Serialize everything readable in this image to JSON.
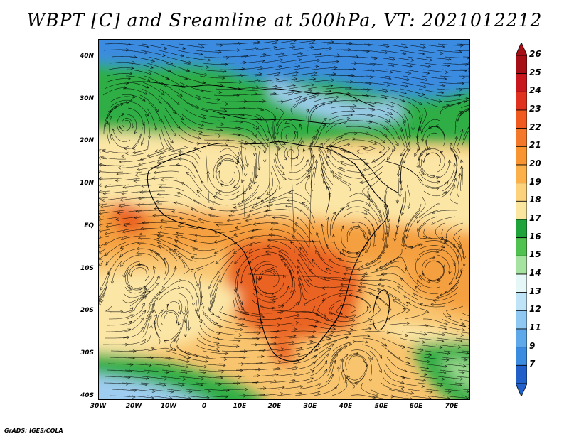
{
  "title": "WBPT [C] and Sreamline at 500hPa, VT: 2021012212",
  "credit": "GrADS: IGES/COLA",
  "lat_labels": [
    "40N",
    "30N",
    "20N",
    "10N",
    "EQ",
    "10S",
    "20S",
    "30S",
    "40S"
  ],
  "lon_labels": [
    "30W",
    "20W",
    "10W",
    "0",
    "10E",
    "20E",
    "30E",
    "40E",
    "50E",
    "60E",
    "70E"
  ],
  "colorbar": {
    "labels": [
      "26",
      "25",
      "24",
      "23",
      "22",
      "21",
      "20",
      "19",
      "18",
      "17",
      "16",
      "15",
      "14",
      "13",
      "12",
      "11",
      "9",
      "7"
    ],
    "colors": [
      "#a50f15",
      "#c8181e",
      "#e0301e",
      "#f05a1e",
      "#f4782a",
      "#f99530",
      "#fbb04a",
      "#fcd27c",
      "#fbe6a0",
      "#1fa33b",
      "#4fc24f",
      "#a6e2a0",
      "#e6f7f7",
      "#bfe3f7",
      "#8fc8f2",
      "#5fa9ea",
      "#3b8be0",
      "#2060c8"
    ]
  },
  "field_palette": {
    "blue": "#3b8be0",
    "light_blue": "#9fcdf0",
    "green": "#2fae45",
    "light_green": "#9ad88e",
    "pale_yellow": "#fbe6a6",
    "light_orange": "#f9c46e",
    "orange": "#f5a040",
    "red_orange": "#ea6424"
  }
}
